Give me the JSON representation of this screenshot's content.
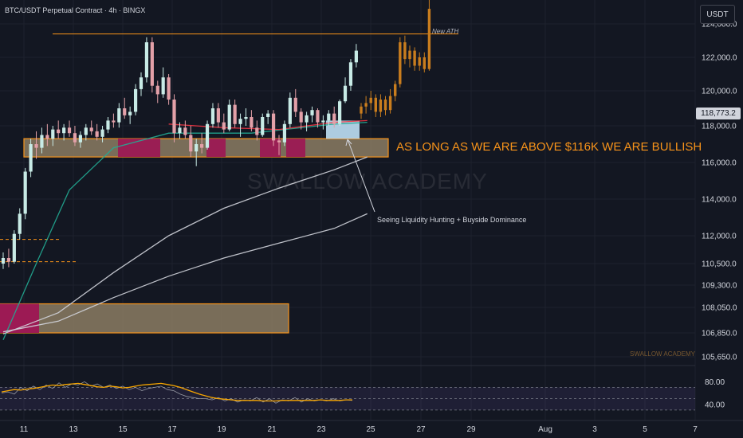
{
  "header": {
    "symbol": "BTC/USDT Perpetual Contract · 4h · BINGX",
    "currency": "USDT"
  },
  "price_axis": {
    "ticks": [
      "124,000.0",
      "122,000.0",
      "120,000.0",
      "118,000.0",
      "116,000.0",
      "114,000.0",
      "112,000.0",
      "110,500.0",
      "109,300.0",
      "108,050.0",
      "106,850.0",
      "105,650.0"
    ],
    "current_price": "118,773.2"
  },
  "rsi_axis": {
    "ticks": [
      "80.00",
      "40.00"
    ]
  },
  "time_axis": {
    "ticks": [
      "11",
      "13",
      "15",
      "17",
      "19",
      "21",
      "23",
      "25",
      "27",
      "29",
      "Aug",
      "3",
      "5",
      "7"
    ]
  },
  "annotations": {
    "bull_text": "AS LONG AS WE ARE ABOVE $116K WE ARE BULLISH",
    "note": "Seeing Liquidity Hunting + Buyside Dominance",
    "ath": "New ATH",
    "watermark": "SWALLOW ACADEMY",
    "watermark_small": "SWALLOW ACADEMY"
  },
  "colors": {
    "background": "#131722",
    "up": "#c8ebe6",
    "down": "#e3a0a8",
    "projection": "#c97d1e",
    "zone_fill": "#8c7c63",
    "zone_border": "#f7931a",
    "liquidity_box": "#bfe0f5",
    "ema_green": "#22ab94",
    "ema_red": "#f23645",
    "ma_white": "#d1d4dc",
    "rsi_line": "#f7a600"
  },
  "chart_data": [
    {
      "type": "candlestick",
      "title": "BTC/USDT Perpetual Contract · 4h · BINGX",
      "xlabel": "",
      "ylabel": "USDT",
      "ylim": [
        105650,
        124500
      ],
      "x_ticks": [
        "11",
        "13",
        "15",
        "17",
        "19",
        "21",
        "23",
        "25",
        "27",
        "29",
        "Aug",
        "3",
        "5",
        "7"
      ],
      "y_ticks": [
        124000,
        122000,
        120000,
        118000,
        116000,
        114000,
        112000,
        110500,
        109300,
        108050,
        106850,
        105650
      ],
      "current_price": 118773.2,
      "candles": [
        {
          "o": 110500,
          "h": 111100,
          "l": 110200,
          "c": 110800
        },
        {
          "o": 110800,
          "h": 111300,
          "l": 110300,
          "c": 110600
        },
        {
          "o": 110600,
          "h": 112300,
          "l": 110500,
          "c": 112100
        },
        {
          "o": 112100,
          "h": 113500,
          "l": 111800,
          "c": 113200
        },
        {
          "o": 113200,
          "h": 115700,
          "l": 112900,
          "c": 115500
        },
        {
          "o": 115500,
          "h": 117300,
          "l": 115200,
          "c": 117000
        },
        {
          "o": 117000,
          "h": 117700,
          "l": 116200,
          "c": 116800
        },
        {
          "o": 116800,
          "h": 117900,
          "l": 116500,
          "c": 117500
        },
        {
          "o": 117500,
          "h": 118100,
          "l": 116900,
          "c": 117300
        },
        {
          "o": 117300,
          "h": 118000,
          "l": 116900,
          "c": 117800
        },
        {
          "o": 117800,
          "h": 118300,
          "l": 117300,
          "c": 117600
        },
        {
          "o": 117600,
          "h": 118100,
          "l": 117200,
          "c": 117900
        },
        {
          "o": 117900,
          "h": 118300,
          "l": 117400,
          "c": 117600
        },
        {
          "o": 117600,
          "h": 118000,
          "l": 116900,
          "c": 117100
        },
        {
          "o": 117100,
          "h": 117700,
          "l": 116800,
          "c": 117500
        },
        {
          "o": 117500,
          "h": 118100,
          "l": 117200,
          "c": 117900
        },
        {
          "o": 117900,
          "h": 118300,
          "l": 117500,
          "c": 117700
        },
        {
          "o": 117700,
          "h": 118100,
          "l": 117200,
          "c": 117400
        },
        {
          "o": 117400,
          "h": 118000,
          "l": 117100,
          "c": 117800
        },
        {
          "o": 117800,
          "h": 118500,
          "l": 117600,
          "c": 118300
        },
        {
          "o": 118300,
          "h": 118700,
          "l": 117900,
          "c": 118200
        },
        {
          "o": 118200,
          "h": 119300,
          "l": 117900,
          "c": 119000
        },
        {
          "o": 119000,
          "h": 119600,
          "l": 118400,
          "c": 118600
        },
        {
          "o": 118600,
          "h": 119100,
          "l": 118100,
          "c": 118800
        },
        {
          "o": 118800,
          "h": 120400,
          "l": 118600,
          "c": 120100
        },
        {
          "o": 120100,
          "h": 121100,
          "l": 119700,
          "c": 120800
        },
        {
          "o": 120800,
          "h": 123200,
          "l": 120500,
          "c": 122900
        },
        {
          "o": 122900,
          "h": 123200,
          "l": 119900,
          "c": 120300
        },
        {
          "o": 120300,
          "h": 120600,
          "l": 119300,
          "c": 119800
        },
        {
          "o": 119800,
          "h": 121400,
          "l": 119600,
          "c": 120800
        },
        {
          "o": 120800,
          "h": 121000,
          "l": 119200,
          "c": 119500
        },
        {
          "o": 119500,
          "h": 119800,
          "l": 117100,
          "c": 117600
        },
        {
          "o": 117600,
          "h": 118200,
          "l": 117300,
          "c": 117900
        },
        {
          "o": 117900,
          "h": 118300,
          "l": 117300,
          "c": 117500
        },
        {
          "o": 117500,
          "h": 118000,
          "l": 116300,
          "c": 116600
        },
        {
          "o": 116600,
          "h": 117300,
          "l": 115800,
          "c": 117000
        },
        {
          "o": 117000,
          "h": 117600,
          "l": 116500,
          "c": 116800
        },
        {
          "o": 116800,
          "h": 118300,
          "l": 116700,
          "c": 118100
        },
        {
          "o": 118100,
          "h": 119300,
          "l": 117900,
          "c": 119000
        },
        {
          "o": 119000,
          "h": 119300,
          "l": 117900,
          "c": 118200
        },
        {
          "o": 118200,
          "h": 118700,
          "l": 117600,
          "c": 117800
        },
        {
          "o": 117800,
          "h": 119500,
          "l": 117700,
          "c": 119200
        },
        {
          "o": 119200,
          "h": 119500,
          "l": 117900,
          "c": 118100
        },
        {
          "o": 118100,
          "h": 118700,
          "l": 117400,
          "c": 118400
        },
        {
          "o": 118400,
          "h": 119000,
          "l": 118000,
          "c": 118500
        },
        {
          "o": 118500,
          "h": 118900,
          "l": 117700,
          "c": 117900
        },
        {
          "o": 117900,
          "h": 118300,
          "l": 117200,
          "c": 117500
        },
        {
          "o": 117500,
          "h": 118700,
          "l": 117400,
          "c": 118500
        },
        {
          "o": 118500,
          "h": 118900,
          "l": 118100,
          "c": 118700
        },
        {
          "o": 118700,
          "h": 118900,
          "l": 116900,
          "c": 117200
        },
        {
          "o": 117200,
          "h": 117500,
          "l": 116400,
          "c": 117100
        },
        {
          "o": 117100,
          "h": 118300,
          "l": 116900,
          "c": 118100
        },
        {
          "o": 118100,
          "h": 119900,
          "l": 117900,
          "c": 119600
        },
        {
          "o": 119600,
          "h": 120100,
          "l": 118500,
          "c": 118800
        },
        {
          "o": 118800,
          "h": 119000,
          "l": 117800,
          "c": 118200
        },
        {
          "o": 118200,
          "h": 118800,
          "l": 117700,
          "c": 118600
        },
        {
          "o": 118600,
          "h": 119100,
          "l": 118200,
          "c": 118900
        },
        {
          "o": 118900,
          "h": 119000,
          "l": 117900,
          "c": 118200
        },
        {
          "o": 118200,
          "h": 118600,
          "l": 117800,
          "c": 118300
        },
        {
          "o": 118300,
          "h": 118900,
          "l": 118000,
          "c": 118700
        },
        {
          "o": 118700,
          "h": 119100,
          "l": 117900,
          "c": 118100
        },
        {
          "o": 118100,
          "h": 119500,
          "l": 118000,
          "c": 119400
        },
        {
          "o": 119400,
          "h": 120800,
          "l": 119300,
          "c": 120300
        },
        {
          "o": 120300,
          "h": 121900,
          "l": 120000,
          "c": 121700
        },
        {
          "o": 121700,
          "h": 122800,
          "l": 121400,
          "c": 122400
        }
      ],
      "projection": [
        {
          "o": 118700,
          "h": 119300,
          "l": 118400,
          "c": 119100
        },
        {
          "o": 119100,
          "h": 119700,
          "l": 118700,
          "c": 119300
        },
        {
          "o": 119300,
          "h": 120000,
          "l": 118900,
          "c": 119600
        },
        {
          "o": 119600,
          "h": 119800,
          "l": 118500,
          "c": 118800
        },
        {
          "o": 118800,
          "h": 119800,
          "l": 118500,
          "c": 119500
        },
        {
          "o": 119500,
          "h": 119700,
          "l": 118600,
          "c": 118900
        },
        {
          "o": 118900,
          "h": 120100,
          "l": 118700,
          "c": 119700
        },
        {
          "o": 119700,
          "h": 120600,
          "l": 119400,
          "c": 120400
        },
        {
          "o": 120400,
          "h": 123200,
          "l": 120200,
          "c": 122900
        },
        {
          "o": 122900,
          "h": 123300,
          "l": 121600,
          "c": 121900
        },
        {
          "o": 121900,
          "h": 122700,
          "l": 121400,
          "c": 122400
        },
        {
          "o": 122400,
          "h": 122600,
          "l": 121200,
          "c": 121500
        },
        {
          "o": 121500,
          "h": 122300,
          "l": 121200,
          "c": 122000
        },
        {
          "o": 122000,
          "h": 122300,
          "l": 121100,
          "c": 121300
        },
        {
          "o": 121300,
          "h": 125500,
          "l": 121200,
          "c": 124900
        }
      ],
      "levels": {
        "ath_line": 123400,
        "support_zone": [
          116300,
          117300
        ],
        "lower_zone": [
          106850,
          108250
        ],
        "dashed_level_1": 111800,
        "dashed_level_2": 110600,
        "liquidity_box": [
          117300,
          118300
        ]
      },
      "moving_averages": [
        {
          "name": "ema_green",
          "points": [
            [
              0,
              106500
            ],
            [
              6,
              110500
            ],
            [
              12,
              114500
            ],
            [
              20,
              116800
            ],
            [
              30,
              117600
            ],
            [
              45,
              117600
            ],
            [
              60,
              118100
            ],
            [
              66,
              118200
            ]
          ]
        },
        {
          "name": "ema_red",
          "points": [
            [
              30,
              118100
            ],
            [
              40,
              117900
            ],
            [
              50,
              117800
            ],
            [
              60,
              118200
            ],
            [
              66,
              118300
            ]
          ]
        },
        {
          "name": "ma_white_fast",
          "points": [
            [
              0,
              106800
            ],
            [
              10,
              107800
            ],
            [
              20,
              110000
            ],
            [
              30,
              112000
            ],
            [
              40,
              113500
            ],
            [
              50,
              114600
            ],
            [
              60,
              115600
            ],
            [
              66,
              116300
            ]
          ]
        },
        {
          "name": "ma_white_slow",
          "points": [
            [
              0,
              106900
            ],
            [
              10,
              107400
            ],
            [
              20,
              108600
            ],
            [
              30,
              109800
            ],
            [
              40,
              110800
            ],
            [
              50,
              111600
            ],
            [
              60,
              112400
            ],
            [
              66,
              113200
            ]
          ]
        }
      ]
    },
    {
      "type": "line",
      "title": "",
      "xlabel": "",
      "ylabel": "",
      "ylim": [
        20,
        100
      ],
      "y_ticks": [
        80,
        40
      ],
      "series": [
        {
          "values": [
            62,
            64,
            66,
            65,
            67,
            68,
            70,
            72,
            74,
            73,
            75,
            76,
            77,
            75,
            73,
            71,
            70,
            72,
            71,
            69,
            70,
            72,
            74,
            75,
            76,
            77,
            75,
            73,
            70,
            66,
            62,
            58,
            55,
            52,
            50,
            49,
            48,
            47,
            47,
            47,
            47,
            46,
            46,
            46,
            47,
            47,
            47,
            47,
            47,
            47,
            48,
            47,
            47,
            47,
            48,
            48
          ]
        },
        {
          "values": [
            60,
            62,
            58,
            70,
            64,
            72,
            66,
            74,
            68,
            78,
            70,
            76,
            74,
            80,
            72,
            76,
            70,
            74,
            68,
            72,
            66,
            70,
            64,
            68,
            70,
            72,
            66,
            64,
            58,
            54,
            52,
            50,
            50,
            48,
            52,
            46,
            50,
            44,
            48,
            46,
            52,
            44,
            50,
            42,
            48,
            46,
            52,
            44,
            50,
            46,
            48,
            46,
            50,
            46,
            48,
            47
          ]
        }
      ],
      "levels": [
        70,
        50,
        30
      ]
    }
  ]
}
